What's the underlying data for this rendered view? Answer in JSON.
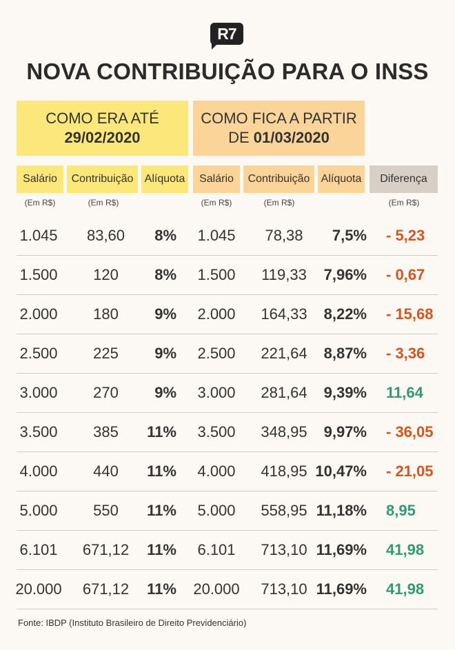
{
  "logo": "R7",
  "title": "NOVA CONTRIBUIÇÃO PARA O INSS",
  "header_old": {
    "line1": "COMO ERA ATÉ",
    "line2": "29/02/2020"
  },
  "header_new": {
    "line1": "COMO FICA A PARTIR",
    "line2_prefix": "DE ",
    "line2": "01/03/2020"
  },
  "columns": [
    "Salário",
    "Contribuição",
    "Alíquota",
    "Salário",
    "Contribuição",
    "Alíquota",
    "Diferença"
  ],
  "units": [
    "(Em R$)",
    "(Em R$)",
    "(Em R$)",
    "(Em R$)",
    "(Em R$)"
  ],
  "rows": [
    [
      "1.045",
      "83,60",
      "8%",
      "1.045",
      "78,38",
      "7,5%",
      "- 5,23"
    ],
    [
      "1.500",
      "120",
      "8%",
      "1.500",
      "119,33",
      "7,96%",
      "- 0,67"
    ],
    [
      "2.000",
      "180",
      "9%",
      "2.000",
      "164,33",
      "8,22%",
      "- 15,68"
    ],
    [
      "2.500",
      "225",
      "9%",
      "2.500",
      "221,64",
      "8,87%",
      "- 3,36"
    ],
    [
      "3.000",
      "270",
      "9%",
      "3.000",
      "281,64",
      "9,39%",
      "11,64"
    ],
    [
      "3.500",
      "385",
      "11%",
      "3.500",
      "348,95",
      "9,97%",
      "- 36,05"
    ],
    [
      "4.000",
      "440",
      "11%",
      "4.000",
      "418,95",
      "10,47%",
      "- 21,05"
    ],
    [
      "5.000",
      "550",
      "11%",
      "5.000",
      "558,95",
      "11,18%",
      "8,95"
    ],
    [
      "6.101",
      "671,12",
      "11%",
      "6.101",
      "713,10",
      "11,69%",
      "41,98"
    ],
    [
      "20.000",
      "671,12",
      "11%",
      "20.000",
      "713,10",
      "11,69%",
      "41,98"
    ]
  ],
  "colors": {
    "negative": "#d4551f",
    "positive": "#2f9a73",
    "yellow": "#fbe77a",
    "orange": "#fbd49a",
    "grey": "#d8d0c6"
  },
  "footer": "Fonte: IBDP (Instituto Brasileiro de Direito Previdenciário)"
}
